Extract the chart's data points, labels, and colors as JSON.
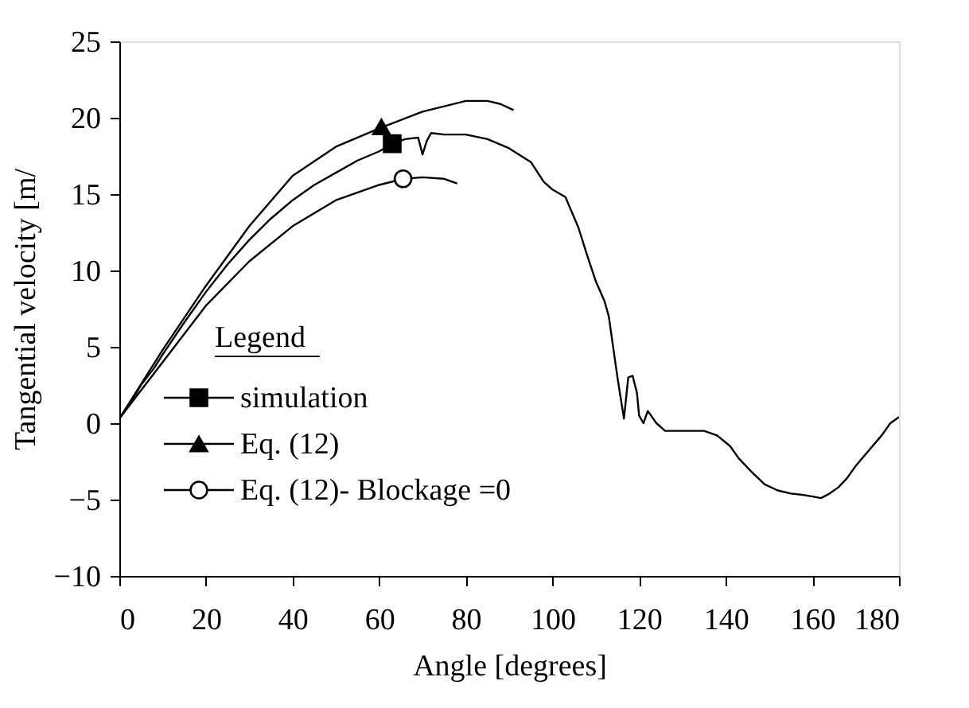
{
  "chart_data": {
    "type": "line",
    "xlabel": "Angle  [degrees]",
    "ylabel": "Tangential velocity [m/",
    "legend_title": "Legend",
    "xlim": [
      0,
      180
    ],
    "xticks": [
      0,
      20,
      40,
      60,
      80,
      100,
      120,
      140,
      160,
      180
    ],
    "ylim": [
      -10,
      25
    ],
    "yticks": [
      -10,
      -5,
      0,
      5,
      10,
      15,
      20,
      25
    ],
    "grid": false,
    "legend": "bottom left",
    "line_style": "solid",
    "series": [
      {
        "color": "#000000",
        "x": [
          0,
          3,
          5,
          8,
          10,
          15,
          20,
          25,
          30,
          35,
          40,
          45,
          50,
          55,
          60,
          63,
          66,
          69,
          70,
          71,
          72,
          75,
          80,
          85,
          90,
          95,
          98,
          100,
          103,
          106,
          108,
          110,
          112,
          113,
          115,
          116.5,
          117.5,
          118.5,
          119.5,
          120,
          121,
          122,
          124,
          126,
          130,
          135,
          138,
          141,
          143,
          146,
          149,
          152,
          155,
          158,
          160,
          162,
          164,
          166,
          168,
          170,
          173,
          176,
          178,
          180
        ],
        "values": [
          0.3,
          1.5,
          2.5,
          3.6,
          4.5,
          6.6,
          8.6,
          10.4,
          12,
          13.4,
          14.6,
          15.6,
          16.4,
          17.2,
          17.8,
          18.3,
          18.6,
          18.7,
          17.6,
          18.5,
          19,
          18.9,
          18.9,
          18.6,
          18,
          17.1,
          15.8,
          15.3,
          14.8,
          12.8,
          11,
          9.3,
          8,
          7,
          3,
          0.3,
          3,
          3.1,
          2,
          0.5,
          0,
          0.8,
          0,
          -0.5,
          -0.5,
          -0.5,
          -0.8,
          -1.5,
          -2.3,
          -3.2,
          -4,
          -4.4,
          -4.6,
          -4.7,
          -4.8,
          -4.9,
          -4.6,
          -4.2,
          -3.6,
          -2.8,
          -1.8,
          -0.8,
          0,
          0.4
        ]
      },
      {
        "color": "#000000",
        "x": [
          0,
          10,
          20,
          30,
          40,
          50,
          60,
          70,
          80,
          85,
          88,
          91
        ],
        "values": [
          0.3,
          4.8,
          9,
          12.9,
          16.2,
          18.1,
          19.3,
          20.4,
          21.1,
          21.1,
          20.9,
          20.5
        ]
      },
      {
        "color": "#000000",
        "x": [
          0,
          10,
          20,
          30,
          40,
          50,
          60,
          65.5,
          70,
          75,
          78
        ],
        "values": [
          0.3,
          4,
          7.7,
          10.6,
          12.9,
          14.6,
          15.6,
          16,
          16.1,
          16,
          15.7
        ]
      },
      {
        "type": "scatter",
        "name": "simulation",
        "color": "#000000",
        "marker": "square",
        "x": [
          63
        ],
        "values": [
          18.3
        ]
      },
      {
        "type": "scatter",
        "name": "Eq. (12)",
        "color": "#000000",
        "marker": "triangle",
        "x": [
          60.5
        ],
        "values": [
          19.4
        ]
      },
      {
        "type": "scatter",
        "name": "Eq. (12)- Blockage =0",
        "color": "#000000",
        "marker": "circle",
        "x": [
          65.5
        ],
        "values": [
          16
        ]
      }
    ]
  }
}
